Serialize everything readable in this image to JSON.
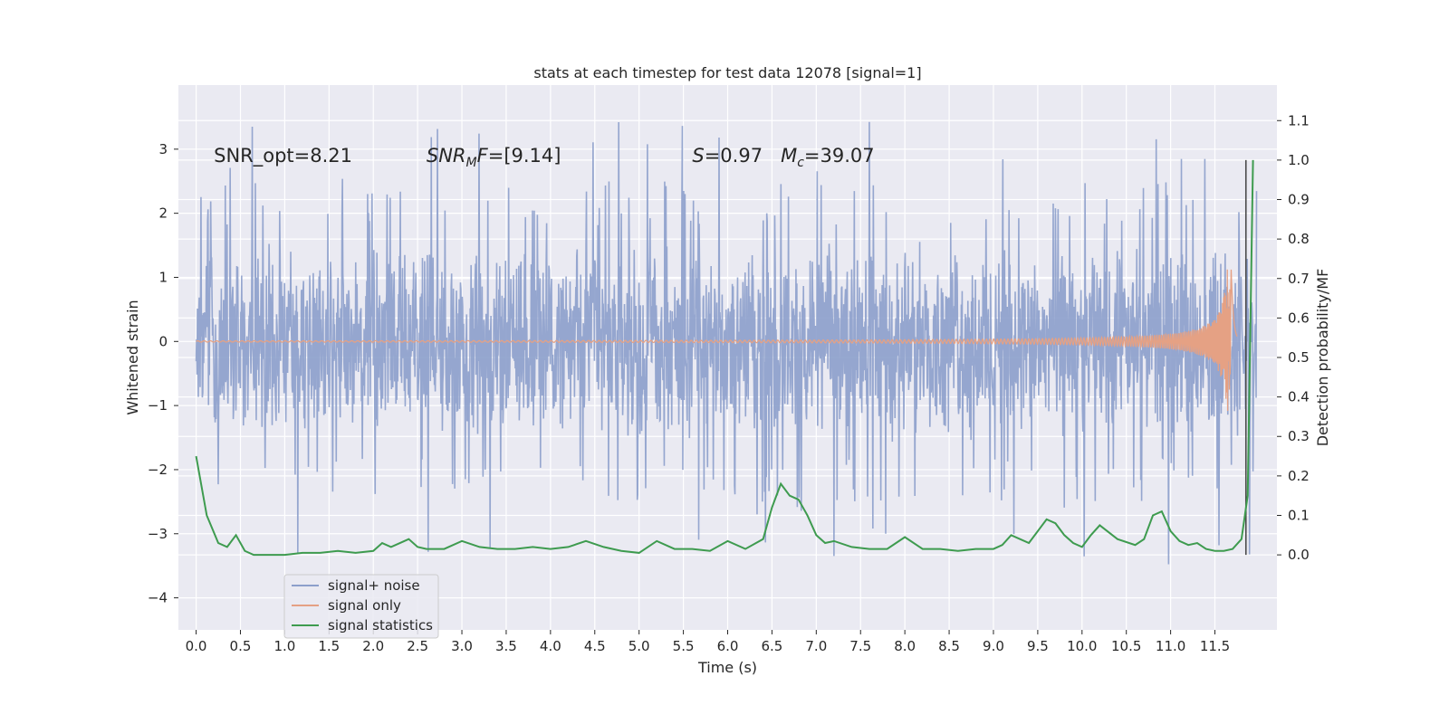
{
  "chart_data": {
    "type": "line",
    "title": "stats at each timestep for test data 12078 [signal=1]",
    "xlabel": "Time (s)",
    "ylabel": "Whitened strain",
    "y2label": "Detection probability/MF",
    "xlim": [
      -0.2,
      12.2
    ],
    "ylim": [
      -4.5,
      4.0
    ],
    "y2lim": [
      -0.19,
      1.19
    ],
    "x_ticks": [
      0.0,
      0.5,
      1.0,
      1.5,
      2.0,
      2.5,
      3.0,
      3.5,
      4.0,
      4.5,
      5.0,
      5.5,
      6.0,
      6.5,
      7.0,
      7.5,
      8.0,
      8.5,
      9.0,
      9.5,
      10.0,
      10.5,
      11.0,
      11.5
    ],
    "x_tick_labels": [
      "0.0",
      "0.5",
      "1.0",
      "1.5",
      "2.0",
      "2.5",
      "3.0",
      "3.5",
      "4.0",
      "4.5",
      "5.0",
      "5.5",
      "6.0",
      "6.5",
      "7.0",
      "7.5",
      "8.0",
      "8.5",
      "9.0",
      "9.5",
      "10.0",
      "10.5",
      "11.0",
      "11.5"
    ],
    "y_ticks": [
      -4,
      -3,
      -2,
      -1,
      0,
      1,
      2,
      3
    ],
    "y_tick_labels": [
      "−4",
      "−3",
      "−2",
      "−1",
      "0",
      "1",
      "2",
      "3"
    ],
    "y2_ticks": [
      0.0,
      0.1,
      0.2,
      0.3,
      0.4,
      0.5,
      0.6,
      0.7,
      0.8,
      0.9,
      1.0,
      1.1
    ],
    "y2_tick_labels": [
      "0.0",
      "0.1",
      "0.2",
      "0.3",
      "0.4",
      "0.5",
      "0.6",
      "0.7",
      "0.8",
      "0.9",
      "1.0",
      "1.1"
    ],
    "grid": true,
    "legend_position": "lower-left",
    "colors": {
      "noise": "#8c9fcb",
      "signal": "#e5a184",
      "stats": "#3e9b4f",
      "marker": "#4a4a4a",
      "background": "#eaeaf2",
      "grid": "#ffffff"
    },
    "annotations": [
      {
        "id": "snr_opt",
        "text": "SNR_opt=8.21",
        "x": 0.2,
        "y": 2.8
      },
      {
        "id": "snr_mf",
        "text": "SNR_MF=[9.14]",
        "x": 2.6,
        "y": 2.8
      },
      {
        "id": "s_mc",
        "text": "S=0.97   M_c=39.07",
        "x": 5.6,
        "y": 2.8
      }
    ],
    "series": [
      {
        "name": "signal+ noise",
        "kind": "noise",
        "x_range": [
          0.0,
          11.97
        ],
        "amplitude_envelope": {
          "upper_typical": 1.9,
          "upper_peak": 3.6,
          "lower_typical": -1.9,
          "lower_peak": -4.1
        }
      },
      {
        "name": "signal only",
        "kind": "chirp",
        "x_range": [
          0.0,
          11.75
        ],
        "peak_time": 11.67,
        "peak_amplitude": 2.1
      },
      {
        "name": "signal statistics",
        "kind": "probability",
        "axis": "right",
        "x": [
          0.0,
          0.12,
          0.25,
          0.35,
          0.45,
          0.55,
          0.65,
          0.75,
          0.85,
          1.0,
          1.2,
          1.4,
          1.6,
          1.8,
          2.0,
          2.1,
          2.2,
          2.3,
          2.4,
          2.5,
          2.6,
          2.8,
          3.0,
          3.2,
          3.4,
          3.6,
          3.8,
          4.0,
          4.2,
          4.4,
          4.6,
          4.8,
          5.0,
          5.2,
          5.4,
          5.6,
          5.8,
          6.0,
          6.2,
          6.4,
          6.5,
          6.6,
          6.7,
          6.8,
          6.9,
          7.0,
          7.1,
          7.2,
          7.4,
          7.6,
          7.8,
          8.0,
          8.2,
          8.4,
          8.6,
          8.8,
          9.0,
          9.1,
          9.2,
          9.3,
          9.4,
          9.5,
          9.6,
          9.7,
          9.8,
          9.9,
          10.0,
          10.1,
          10.2,
          10.4,
          10.6,
          10.7,
          10.8,
          10.9,
          11.0,
          11.1,
          11.2,
          11.3,
          11.4,
          11.5,
          11.6,
          11.7,
          11.8,
          11.87,
          11.93
        ],
        "y": [
          0.25,
          0.1,
          0.03,
          0.02,
          0.05,
          0.01,
          0.0,
          0.0,
          0.0,
          0.0,
          0.005,
          0.005,
          0.01,
          0.005,
          0.01,
          0.03,
          0.02,
          0.03,
          0.04,
          0.02,
          0.015,
          0.015,
          0.035,
          0.02,
          0.015,
          0.015,
          0.02,
          0.015,
          0.02,
          0.035,
          0.02,
          0.01,
          0.005,
          0.035,
          0.015,
          0.015,
          0.01,
          0.035,
          0.015,
          0.04,
          0.12,
          0.18,
          0.15,
          0.14,
          0.1,
          0.05,
          0.03,
          0.035,
          0.02,
          0.015,
          0.015,
          0.045,
          0.015,
          0.015,
          0.01,
          0.015,
          0.015,
          0.025,
          0.05,
          0.04,
          0.03,
          0.06,
          0.09,
          0.08,
          0.05,
          0.03,
          0.02,
          0.05,
          0.075,
          0.04,
          0.025,
          0.04,
          0.1,
          0.11,
          0.06,
          0.035,
          0.025,
          0.03,
          0.015,
          0.01,
          0.01,
          0.015,
          0.04,
          0.15,
          1.0
        ]
      }
    ],
    "vertical_marker": {
      "x": 11.85
    }
  }
}
